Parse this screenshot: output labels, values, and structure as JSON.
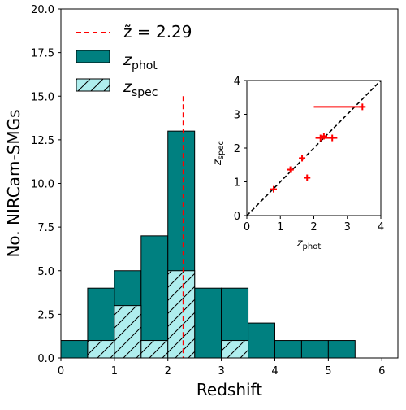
{
  "chart_data": [
    {
      "type": "bar",
      "xlabel": "Redshift",
      "ylabel": "No. NIRCam-SMGs",
      "xlim": [
        0,
        6.3
      ],
      "ylim": [
        0,
        20
      ],
      "xticks": [
        "0",
        "1",
        "2",
        "3",
        "4",
        "5",
        "6"
      ],
      "yticks": [
        "0.0",
        "2.5",
        "5.0",
        "7.5",
        "10.0",
        "12.5",
        "15.0",
        "17.5",
        "20.0"
      ],
      "bin_edges": [
        0,
        0.5,
        1.0,
        1.5,
        2.0,
        2.5,
        3.0,
        3.5,
        4.0,
        4.5,
        5.0,
        5.5
      ],
      "series": [
        {
          "name": "z_phot",
          "style": "filled",
          "color": "#008080",
          "values": [
            1,
            4,
            5,
            7,
            13,
            4,
            4,
            2,
            1,
            1,
            1
          ]
        },
        {
          "name": "z_spec",
          "style": "hatched",
          "color": "#afeeee",
          "values": [
            0,
            1,
            3,
            1,
            5,
            0,
            1,
            0,
            0,
            0,
            0
          ]
        }
      ],
      "median_line": {
        "value": 2.29,
        "color": "#ff0000",
        "ymax": 15,
        "label": "z̃ = 2.29"
      },
      "legend": {
        "position": "top-left",
        "median_prefix": "z̃ = 2.29",
        "phot_main": "z",
        "phot_sub": "phot",
        "spec_main": "z",
        "spec_sub": "spec"
      }
    },
    {
      "type": "scatter",
      "xlabel_main": "z",
      "xlabel_sub": "phot",
      "ylabel_main": "z",
      "ylabel_sub": "spec",
      "xlim": [
        0,
        4
      ],
      "ylim": [
        0,
        4
      ],
      "xticks": [
        "0",
        "1",
        "2",
        "3",
        "4"
      ],
      "yticks": [
        "0",
        "1",
        "2",
        "3",
        "4"
      ],
      "one_to_one_line": true,
      "color": "#ff0000",
      "points": [
        {
          "x": 0.8,
          "y": 0.78,
          "xerr_lo": 0.05,
          "xerr_hi": 0.05
        },
        {
          "x": 1.3,
          "y": 1.36,
          "xerr_lo": 0.1,
          "xerr_hi": 0.1
        },
        {
          "x": 1.65,
          "y": 1.7,
          "xerr_lo": 0.06,
          "xerr_hi": 0.06
        },
        {
          "x": 1.8,
          "y": 1.12,
          "xerr_lo": 0.08,
          "xerr_hi": 0.08
        },
        {
          "x": 2.2,
          "y": 2.3,
          "xerr_lo": 0.15,
          "xerr_hi": 0.2
        },
        {
          "x": 2.3,
          "y": 2.35,
          "xerr_lo": 0.1,
          "xerr_hi": 0.1
        },
        {
          "x": 2.55,
          "y": 2.3,
          "xerr_lo": 0.15,
          "xerr_hi": 0.15
        },
        {
          "x": 3.45,
          "y": 3.22,
          "xerr_lo": 1.45,
          "xerr_hi": 0.05
        }
      ]
    }
  ]
}
